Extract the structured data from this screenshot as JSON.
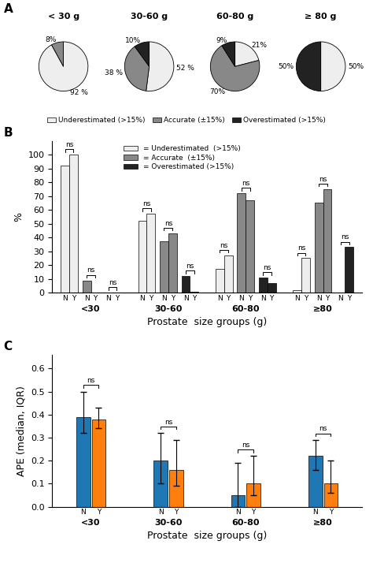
{
  "chart_data": [
    {
      "type": "pie",
      "panel_label": "A",
      "title": "< 30 g",
      "categories": [
        "Underestimated (>15%)",
        "Accurate (±15%)",
        "Overestimated (>15%)"
      ],
      "values": [
        92,
        8,
        0
      ],
      "value_labels": [
        "92 %",
        "8%",
        null
      ],
      "colors": [
        "#eeeeee",
        "#888888",
        "#222222"
      ],
      "legend": "upper center"
    },
    {
      "type": "pie",
      "title": "30-60 g",
      "categories": [
        "Underestimated (>15%)",
        "Accurate (±15%)",
        "Overestimated (>15%)"
      ],
      "values": [
        52,
        38,
        10
      ],
      "value_labels": [
        "52 %",
        "38 %",
        "10%"
      ],
      "colors": [
        "#eeeeee",
        "#888888",
        "#222222"
      ]
    },
    {
      "type": "pie",
      "title": "60-80 g",
      "categories": [
        "Underestimated (>15%)",
        "Accurate (±15%)",
        "Overestimated (>15%)"
      ],
      "values": [
        21,
        70,
        9
      ],
      "value_labels": [
        "21%",
        "70%",
        "9%"
      ],
      "colors": [
        "#eeeeee",
        "#888888",
        "#222222"
      ]
    },
    {
      "type": "pie",
      "title": "≥ 80 g",
      "categories": [
        "Underestimated (>15%)",
        "Accurate (±15%)",
        "Overestimated (>15%)"
      ],
      "values": [
        50,
        0,
        50
      ],
      "value_labels": [
        "50%",
        null,
        "50%"
      ],
      "colors": [
        "#eeeeee",
        "#888888",
        "#222222"
      ]
    },
    {
      "type": "bar",
      "panel_label": "B",
      "categories": [
        "<30",
        "30-60",
        "60-80",
        "≥80"
      ],
      "subcategories": [
        "N",
        "Y"
      ],
      "series": [
        {
          "name": "= Underestimated  (>15%)",
          "color": "#eeeeee",
          "values": [
            [
              92,
              100
            ],
            [
              52,
              57
            ],
            [
              17,
              27
            ],
            [
              2,
              25
            ]
          ],
          "annotations": [
            "ns",
            "ns",
            "ns",
            "ns"
          ]
        },
        {
          "name": "= Accurate  (±15%)",
          "color": "#888888",
          "values": [
            [
              9,
              0
            ],
            [
              37,
              43
            ],
            [
              72,
              67
            ],
            [
              65,
              75
            ]
          ],
          "annotations": [
            "ns",
            "ns",
            "ns",
            "ns"
          ]
        },
        {
          "name": "= Overestimated (>15%)",
          "color": "#222222",
          "values": [
            [
              0,
              0
            ],
            [
              12,
              1
            ],
            [
              11,
              7
            ],
            [
              0,
              33
            ]
          ],
          "annotations": [
            "ns",
            "ns",
            "ns",
            "ns"
          ]
        }
      ],
      "x_label": "Prostate  size groups (g)",
      "y_label": "%",
      "ylim": [
        0,
        110
      ],
      "yticks": [
        0,
        10,
        20,
        30,
        40,
        50,
        60,
        70,
        80,
        90,
        100
      ],
      "legend": "upper center"
    },
    {
      "type": "bar",
      "panel_label": "C",
      "categories": [
        "<30",
        "30-60",
        "60-80",
        "≥80"
      ],
      "series": [
        {
          "name": "N",
          "values": [
            0.39,
            0.2,
            0.05,
            0.22
          ],
          "err_low": [
            0.07,
            0.1,
            0.05,
            0.06
          ],
          "err_high": [
            0.11,
            0.12,
            0.14,
            0.07
          ]
        },
        {
          "name": "Y",
          "values": [
            0.38,
            0.16,
            0.1,
            0.1
          ],
          "err_low": [
            0.04,
            0.07,
            0.05,
            0.04
          ],
          "err_high": [
            0.05,
            0.13,
            0.12,
            0.1
          ]
        }
      ],
      "annotations": [
        "ns",
        "ns",
        "ns",
        "ns"
      ],
      "x_label": "Prostate  size groups (g)",
      "y_label": "APE (median, IQR)",
      "ylim": [
        0,
        0.66
      ],
      "yticks": [
        0.0,
        0.1,
        0.2,
        0.3,
        0.4,
        0.5,
        0.6
      ]
    }
  ]
}
